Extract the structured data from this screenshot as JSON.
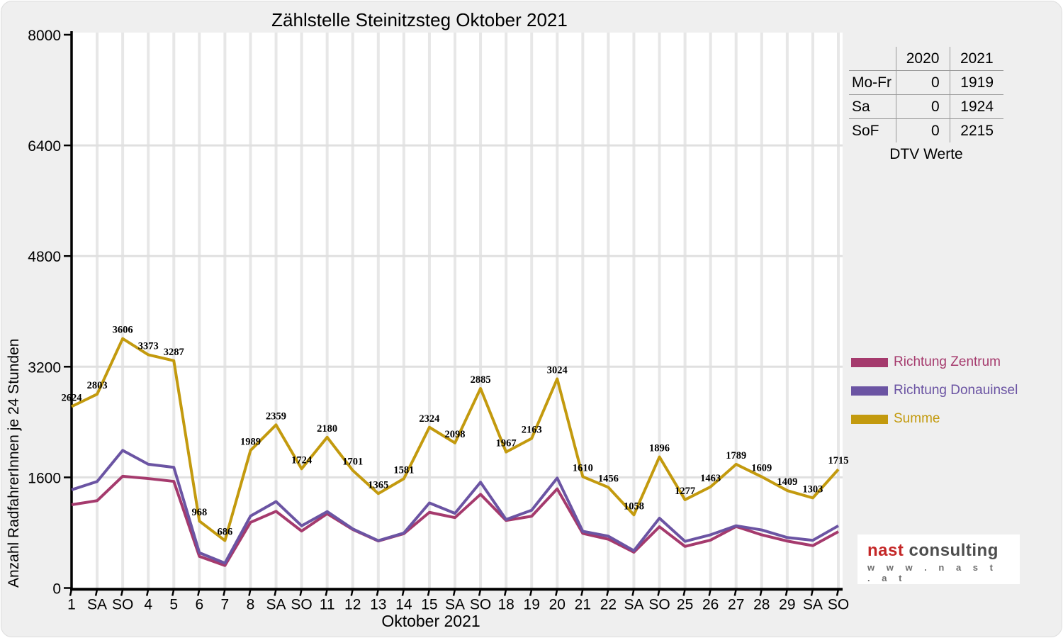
{
  "title": "Zählstelle Steinitzsteg Oktober 2021",
  "y_axis": {
    "label": "Anzahl RadfahrerInnen je 24 Stunden"
  },
  "x_axis": {
    "label": "Oktober 2021",
    "holiday_color": "#EE0000"
  },
  "chart_data": {
    "type": "line",
    "title": "Zählstelle Steinitzsteg Oktober 2021",
    "xlabel": "Oktober 2021",
    "ylabel": "Anzahl RadfahrerInnen je 24 Stunden",
    "ylim": [
      0,
      8000
    ],
    "y_ticks": [
      0,
      1600,
      3200,
      4800,
      6400,
      8000
    ],
    "grid": true,
    "legend_position": "right",
    "holiday_color": "#EE0000",
    "x_days": [
      {
        "label": "1",
        "holiday": false
      },
      {
        "label": "SA",
        "holiday": false
      },
      {
        "label": "SO",
        "holiday": true
      },
      {
        "label": "4",
        "holiday": false
      },
      {
        "label": "5",
        "holiday": false
      },
      {
        "label": "6",
        "holiday": false
      },
      {
        "label": "7",
        "holiday": false
      },
      {
        "label": "8",
        "holiday": false
      },
      {
        "label": "SA",
        "holiday": false
      },
      {
        "label": "SO",
        "holiday": true
      },
      {
        "label": "11",
        "holiday": false
      },
      {
        "label": "12",
        "holiday": false
      },
      {
        "label": "13",
        "holiday": false
      },
      {
        "label": "14",
        "holiday": false
      },
      {
        "label": "15",
        "holiday": false
      },
      {
        "label": "SA",
        "holiday": false
      },
      {
        "label": "SO",
        "holiday": true
      },
      {
        "label": "18",
        "holiday": false
      },
      {
        "label": "19",
        "holiday": false
      },
      {
        "label": "20",
        "holiday": false
      },
      {
        "label": "21",
        "holiday": false
      },
      {
        "label": "22",
        "holiday": false
      },
      {
        "label": "SA",
        "holiday": false
      },
      {
        "label": "SO",
        "holiday": true
      },
      {
        "label": "25",
        "holiday": false
      },
      {
        "label": "26",
        "holiday": true
      },
      {
        "label": "27",
        "holiday": false
      },
      {
        "label": "28",
        "holiday": false
      },
      {
        "label": "29",
        "holiday": false
      },
      {
        "label": "SA",
        "holiday": false
      },
      {
        "label": "SO",
        "holiday": true
      }
    ],
    "series": [
      {
        "name": "Richtung Zentrum",
        "color": "#A53A6D",
        "point_labels": false,
        "values": [
          1204,
          1263,
          1616,
          1583,
          1542,
          458,
          326,
          949,
          1109,
          824,
          1075,
          846,
          680,
          786,
          1094,
          1018,
          1355,
          977,
          1038,
          1434,
          790,
          706,
          518,
          886,
          602,
          693,
          889,
          769,
          679,
          613,
          815
        ]
      },
      {
        "name": "Richtung Donauinsel",
        "color": "#6B54A3",
        "point_labels": false,
        "values": [
          1420,
          1540,
          1990,
          1790,
          1745,
          510,
          360,
          1040,
          1250,
          900,
          1105,
          855,
          685,
          795,
          1230,
          1080,
          1530,
          990,
          1125,
          1590,
          820,
          750,
          540,
          1010,
          675,
          770,
          900,
          840,
          730,
          690,
          900
        ]
      },
      {
        "name": "Summe",
        "color": "#C39A0E",
        "point_labels": true,
        "values": [
          2624,
          2803,
          3606,
          3373,
          3287,
          968,
          686,
          1989,
          2359,
          1724,
          2180,
          1701,
          1365,
          1581,
          2324,
          2098,
          2885,
          1967,
          2163,
          3024,
          1610,
          1456,
          1058,
          1896,
          1277,
          1463,
          1789,
          1609,
          1409,
          1303,
          1715
        ]
      }
    ]
  },
  "summary_table": {
    "col_headers": [
      "2020",
      "2021"
    ],
    "rows": [
      {
        "label": "Mo-Fr",
        "y2020": "0",
        "y2021": "1919"
      },
      {
        "label": "Sa",
        "y2020": "0",
        "y2021": "1924"
      },
      {
        "label": "SoF",
        "y2020": "0",
        "y2021": "2215"
      }
    ],
    "caption": "DTV Werte"
  },
  "legend": {
    "items": [
      {
        "label": "Richtung Zentrum"
      },
      {
        "label": "Richtung Donauinsel"
      },
      {
        "label": "Summe"
      }
    ]
  },
  "logo": {
    "brand_primary": "nast",
    "brand_secondary": " consulting",
    "url": "w w w . n a s t . a t",
    "primary_color": "#C42727",
    "secondary_color": "#4d4d4d"
  }
}
